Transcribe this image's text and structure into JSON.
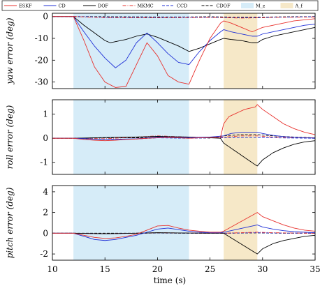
{
  "chart_data": {
    "type": "line",
    "xlabel": "time (s)",
    "xlim": [
      10,
      35
    ],
    "x_ticks": [
      10,
      15,
      20,
      25,
      30,
      35
    ],
    "shaded_regions": [
      {
        "label": "M_z",
        "x": [
          12,
          23
        ],
        "color": "#d6ecf8"
      },
      {
        "label": "A_f",
        "x": [
          26.3,
          29.5
        ],
        "color": "#f6e8c8"
      }
    ],
    "legend": [
      {
        "label": "ESKF",
        "color": "#e8312d",
        "dash": "solid"
      },
      {
        "label": "CD",
        "color": "#1f2fd6",
        "dash": "solid"
      },
      {
        "label": "DOF",
        "color": "#000000",
        "dash": "solid"
      },
      {
        "label": "MKMC",
        "color": "#e8312d",
        "dash": "dashdot"
      },
      {
        "label": "CCD",
        "color": "#1f2fd6",
        "dash": "dashed"
      },
      {
        "label": "CDOF",
        "color": "#000000",
        "dash": "dashed"
      },
      {
        "label": "M_z",
        "color": "#d6ecf8",
        "dash": "patch"
      },
      {
        "label": "A_f",
        "color": "#f6e8c8",
        "dash": "patch"
      }
    ],
    "panels": [
      {
        "ylabel": "yaw error (deg)",
        "ylim": [
          -33,
          1.5
        ],
        "y_ticks": [
          0,
          -10,
          -20,
          -30
        ],
        "series": [
          {
            "name": "ESKF",
            "x": [
              10,
              12,
              13,
              14,
              15,
              16,
              17,
              18,
              19,
              20,
              21,
              22,
              23,
              24,
              25,
              26,
              26.3,
              27,
              28,
              29,
              29.5,
              30,
              31,
              32,
              33,
              34,
              35
            ],
            "y": [
              0,
              0,
              -11,
              -23,
              -30,
              -32.5,
              -32,
              -22,
              -12,
              -18,
              -27,
              -30,
              -31,
              -20,
              -10,
              -3,
              -2,
              -3,
              -5,
              -7,
              -6,
              -5,
              -4,
              -3,
              -2,
              -1.5,
              -1
            ]
          },
          {
            "name": "CD",
            "x": [
              10,
              12,
              13,
              14,
              15,
              16,
              17,
              18,
              19,
              20,
              21,
              22,
              23,
              24,
              25,
              26,
              26.3,
              27,
              28,
              29,
              29.5,
              30,
              31,
              32,
              33,
              34,
              35
            ],
            "y": [
              0,
              0,
              -7,
              -13.5,
              -19,
              -23.5,
              -20,
              -12,
              -7.5,
              -12,
              -17,
              -21,
              -22,
              -16,
              -11,
              -7,
              -6,
              -7,
              -8,
              -9,
              -9,
              -8,
              -7,
              -6,
              -5,
              -4,
              -3.5
            ]
          },
          {
            "name": "DOF",
            "x": [
              10,
              12,
              13,
              14,
              15,
              15.5,
              16,
              17,
              18,
              19,
              20,
              21,
              22,
              23,
              24,
              25,
              26,
              26.3,
              27,
              28,
              29,
              29.5,
              30,
              31,
              32,
              33,
              34,
              35
            ],
            "y": [
              0,
              0,
              -4,
              -7.5,
              -11,
              -12,
              -11.5,
              -10.5,
              -9,
              -8,
              -9.5,
              -11.5,
              -13.5,
              -16,
              -14.5,
              -12.5,
              -10.5,
              -10,
              -10.5,
              -11,
              -12,
              -12,
              -10.5,
              -9,
              -8,
              -7,
              -6,
              -5
            ]
          },
          {
            "name": "MKMC",
            "x": [
              10,
              12,
              15,
              20,
              23,
              25,
              26.3,
              28,
              29.5,
              31,
              33,
              35
            ],
            "y": [
              0,
              0,
              -0.5,
              -0.6,
              -0.5,
              -0.4,
              -0.5,
              -0.7,
              -0.6,
              -0.4,
              -0.3,
              -0.2
            ]
          },
          {
            "name": "CCD",
            "x": [
              10,
              12,
              15,
              20,
              23,
              25,
              26.3,
              28,
              29.5,
              31,
              33,
              35
            ],
            "y": [
              0,
              0,
              -0.3,
              -0.4,
              -0.3,
              -0.3,
              -0.4,
              -0.5,
              -0.5,
              -0.3,
              -0.2,
              -0.1
            ]
          },
          {
            "name": "CDOF",
            "x": [
              10,
              12,
              15,
              20,
              23,
              25,
              26.3,
              28,
              29.5,
              31,
              33,
              35
            ],
            "y": [
              0,
              0,
              -0.1,
              -0.2,
              -0.2,
              -0.1,
              -0.2,
              -0.3,
              -0.3,
              -0.2,
              -0.1,
              -0.1
            ]
          }
        ]
      },
      {
        "ylabel": "roll error (deg)",
        "ylim": [
          -1.5,
          1.6
        ],
        "y_ticks": [
          1,
          0,
          -1
        ],
        "series": [
          {
            "name": "ESKF",
            "x": [
              10,
              12,
              13,
              14,
              15,
              16,
              17,
              18,
              19,
              20,
              21,
              22,
              23,
              24,
              25,
              26,
              26.3,
              26.8,
              27.3,
              27.8,
              28.3,
              28.8,
              29.3,
              29.5,
              30,
              31,
              32,
              33,
              34,
              35
            ],
            "y": [
              0,
              0,
              -0.05,
              -0.08,
              -0.1,
              -0.08,
              -0.05,
              -0.03,
              0,
              0.02,
              0.03,
              0.02,
              0,
              0.02,
              0.03,
              0.05,
              0.6,
              0.9,
              1.0,
              1.1,
              1.2,
              1.25,
              1.3,
              1.4,
              1.2,
              0.9,
              0.6,
              0.4,
              0.25,
              0.15
            ]
          },
          {
            "name": "CD",
            "x": [
              10,
              12,
              15,
              18,
              20,
              23,
              25,
              26.3,
              27,
              28,
              29,
              29.5,
              30,
              31,
              32,
              33,
              34,
              35
            ],
            "y": [
              0,
              0,
              -0.05,
              -0.02,
              0.05,
              0.03,
              0.05,
              0.1,
              0.2,
              0.25,
              0.25,
              0.25,
              0.2,
              0.12,
              0.07,
              0.04,
              0.02,
              0.01
            ]
          },
          {
            "name": "DOF",
            "x": [
              10,
              12,
              15,
              18,
              20,
              23,
              25,
              26,
              26.3,
              26.8,
              27.3,
              27.8,
              28.3,
              28.8,
              29.3,
              29.5,
              30,
              31,
              32,
              33,
              34,
              35
            ],
            "y": [
              0,
              0,
              0.03,
              0.05,
              0.08,
              0.05,
              0.02,
              0,
              -0.2,
              -0.35,
              -0.5,
              -0.65,
              -0.8,
              -0.95,
              -1.1,
              -1.15,
              -0.9,
              -0.6,
              -0.4,
              -0.25,
              -0.15,
              -0.1
            ]
          },
          {
            "name": "MKMC",
            "x": [
              10,
              12,
              15,
              18,
              20,
              23,
              25,
              26.3,
              28,
              29.5,
              31,
              33,
              35
            ],
            "y": [
              0,
              0,
              -0.02,
              0.05,
              0.1,
              0.05,
              0.03,
              0.05,
              0.1,
              0.1,
              0.05,
              0.03,
              0.02
            ]
          },
          {
            "name": "CCD",
            "x": [
              10,
              12,
              15,
              18,
              20,
              23,
              25,
              26.3,
              28,
              29.5,
              31,
              33,
              35
            ],
            "y": [
              0,
              0,
              -0.05,
              -0.03,
              0.02,
              0,
              0.02,
              0.02,
              0.03,
              0.03,
              0.02,
              0.01,
              0
            ]
          },
          {
            "name": "CDOF",
            "x": [
              10,
              12,
              15,
              18,
              20,
              23,
              25,
              26.3,
              28,
              29.5,
              31,
              33,
              35
            ],
            "y": [
              0,
              0,
              0.02,
              0.02,
              0.03,
              0.02,
              0.01,
              0.1,
              0.15,
              0.15,
              0.1,
              0.05,
              0.02
            ]
          }
        ]
      },
      {
        "ylabel": "pitch error (deg)",
        "ylim": [
          -2.6,
          4.6
        ],
        "y_ticks": [
          4,
          2,
          0,
          -2
        ],
        "series": [
          {
            "name": "ESKF",
            "x": [
              10,
              12,
              13,
              14,
              15,
              16,
              17,
              18,
              19,
              20,
              21,
              22,
              23,
              24,
              25,
              26,
              26.3,
              29.5,
              30,
              31,
              32,
              33,
              34,
              35
            ],
            "y": [
              0,
              0,
              -0.2,
              -0.4,
              -0.5,
              -0.45,
              -0.3,
              -0.1,
              0.3,
              0.7,
              0.75,
              0.5,
              0.3,
              0.2,
              0.1,
              0.1,
              0.2,
              2.0,
              1.6,
              1.2,
              0.8,
              0.5,
              0.3,
              0.2
            ]
          },
          {
            "name": "CD",
            "x": [
              10,
              12,
              13,
              14,
              15,
              16,
              17,
              18,
              19,
              20,
              21,
              22,
              23,
              24,
              25,
              26,
              26.3,
              29.5,
              30,
              31,
              32,
              33,
              34,
              35
            ],
            "y": [
              0,
              0,
              -0.3,
              -0.6,
              -0.7,
              -0.6,
              -0.4,
              -0.2,
              0.1,
              0.4,
              0.5,
              0.35,
              0.2,
              0.1,
              0.05,
              0.05,
              0.1,
              0.8,
              0.6,
              0.4,
              0.25,
              0.15,
              0.1,
              0.05
            ]
          },
          {
            "name": "DOF",
            "x": [
              10,
              12,
              15,
              18,
              20,
              23,
              25,
              26,
              26.3,
              29.5,
              30,
              31,
              32,
              33,
              34,
              35
            ],
            "y": [
              0,
              0,
              -0.05,
              0,
              0.05,
              0.02,
              0,
              0,
              0,
              -2.0,
              -1.5,
              -1.0,
              -0.7,
              -0.5,
              -0.3,
              -0.2
            ]
          },
          {
            "name": "MKMC",
            "x": [
              10,
              12,
              15,
              18,
              20,
              23,
              25,
              26.3,
              29.5,
              31,
              33,
              35
            ],
            "y": [
              0,
              0,
              -0.05,
              0,
              0.05,
              0.02,
              0,
              0,
              0.1,
              0.05,
              0.02,
              0
            ]
          },
          {
            "name": "CCD",
            "x": [
              10,
              12,
              15,
              18,
              20,
              23,
              25,
              26.3,
              29.5,
              31,
              33,
              35
            ],
            "y": [
              0,
              0,
              -0.05,
              0,
              0.03,
              0.01,
              0,
              0,
              0.05,
              0.02,
              0.01,
              0
            ]
          },
          {
            "name": "CDOF",
            "x": [
              10,
              12,
              15,
              18,
              20,
              23,
              25,
              26.3,
              29.5,
              31,
              33,
              35
            ],
            "y": [
              0,
              0,
              0,
              0,
              0.02,
              0,
              0,
              0,
              0.03,
              0.01,
              0,
              0
            ]
          }
        ]
      }
    ]
  }
}
